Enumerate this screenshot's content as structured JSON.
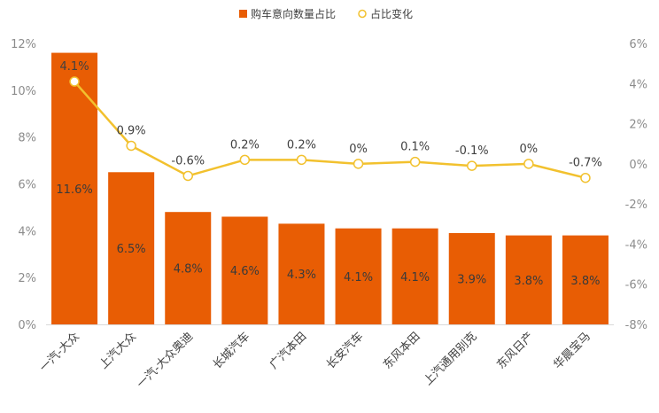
{
  "chart_data": {
    "type": "bar",
    "categories": [
      "一汽-大众",
      "上汽大众",
      "一汽-大众奥迪",
      "长城汽车",
      "广汽本田",
      "长安汽车",
      "东风本田",
      "上汽通用别克",
      "东风日产",
      "华晨宝马"
    ],
    "series": [
      {
        "name": "购车意向数量占比",
        "type": "bar",
        "axis": "left",
        "color": "#E85D04",
        "values": [
          11.6,
          6.5,
          4.8,
          4.6,
          4.3,
          4.1,
          4.1,
          3.9,
          3.8,
          3.8
        ],
        "labels": [
          "11.6%",
          "6.5%",
          "4.8%",
          "4.6%",
          "4.3%",
          "4.1%",
          "4.1%",
          "3.9%",
          "3.8%",
          "3.8%"
        ]
      },
      {
        "name": "占比变化",
        "type": "line",
        "axis": "right",
        "color": "#F2C12E",
        "values": [
          4.1,
          0.9,
          -0.6,
          0.2,
          0.2,
          0,
          0.1,
          -0.1,
          0,
          -0.7
        ],
        "labels": [
          "4.1%",
          "0.9%",
          "-0.6%",
          "0.2%",
          "0.2%",
          "0%",
          "0.1%",
          "-0.1%",
          "0%",
          "-0.7%"
        ]
      }
    ],
    "ylim_left": [
      0,
      12
    ],
    "yticks_left": [
      "0%",
      "2%",
      "4%",
      "6%",
      "8%",
      "10%",
      "12%"
    ],
    "ylim_right": [
      -8,
      6
    ],
    "yticks_right": [
      "-8%",
      "-6%",
      "-4%",
      "-2%",
      "0%",
      "2%",
      "4%",
      "6%"
    ],
    "legend_position": "top-center",
    "grid": false
  }
}
